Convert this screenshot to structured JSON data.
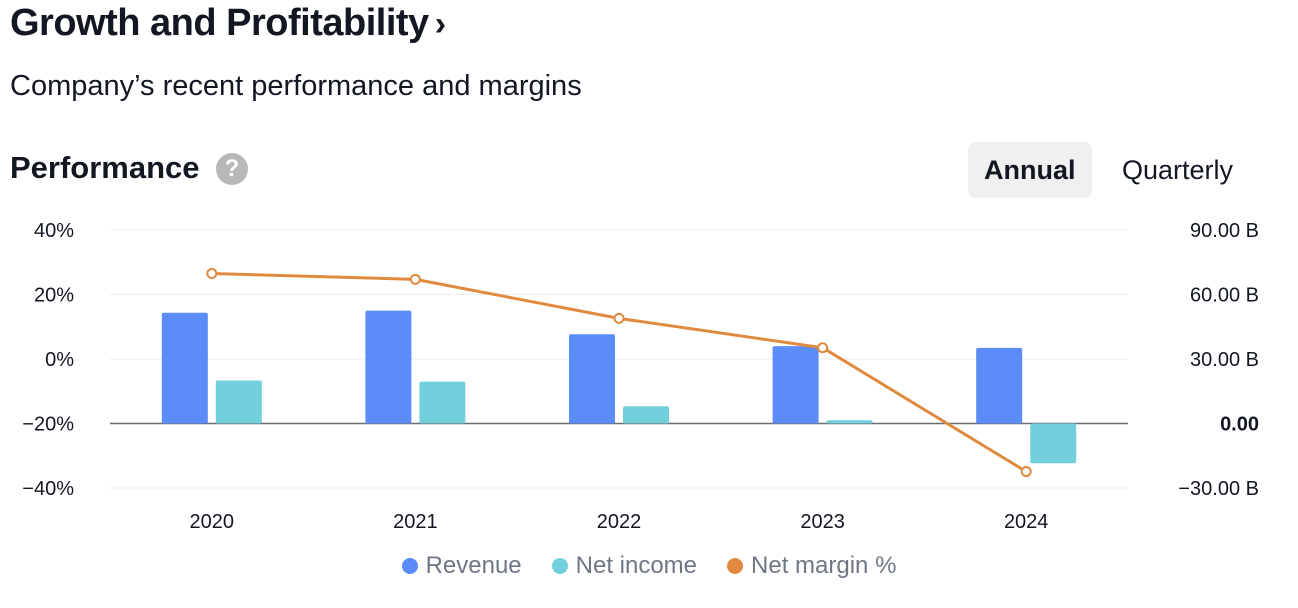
{
  "header": {
    "title": "Growth and Profitability",
    "title_chevron": "›",
    "subtitle": "Company’s recent performance and margins"
  },
  "performance": {
    "title": "Performance",
    "help_icon": "?",
    "tabs": [
      {
        "label": "Annual",
        "active": true
      },
      {
        "label": "Quarterly",
        "active": false
      }
    ]
  },
  "colors": {
    "revenue": "#5b8cf8",
    "net_income": "#72cfdc",
    "net_margin": "#e08a3f"
  },
  "chart_data": {
    "type": "bar",
    "categories": [
      "2020",
      "2021",
      "2022",
      "2023",
      "2024"
    ],
    "series": [
      {
        "name": "Revenue",
        "type": "bar",
        "axis": "right",
        "values": [
          51.5,
          52.5,
          41.5,
          36.0,
          35.2
        ]
      },
      {
        "name": "Net income",
        "type": "bar",
        "axis": "right",
        "values": [
          20.0,
          19.5,
          8.0,
          1.5,
          -18.5
        ]
      },
      {
        "name": "Net margin %",
        "type": "line",
        "axis": "left",
        "values": [
          26.5,
          24.7,
          12.6,
          3.5,
          -34.9
        ]
      }
    ],
    "left_axis": {
      "ticks": [
        "40%",
        "20%",
        "0%",
        "−20%",
        "−40%"
      ],
      "ylim": [
        -40,
        40
      ]
    },
    "right_axis": {
      "ticks": [
        "90.00 B",
        "60.00 B",
        "30.00 B",
        "0.00",
        "−30.00 B"
      ],
      "ylim": [
        -30,
        90
      ]
    },
    "grid": true,
    "legend": "bottom-center"
  }
}
